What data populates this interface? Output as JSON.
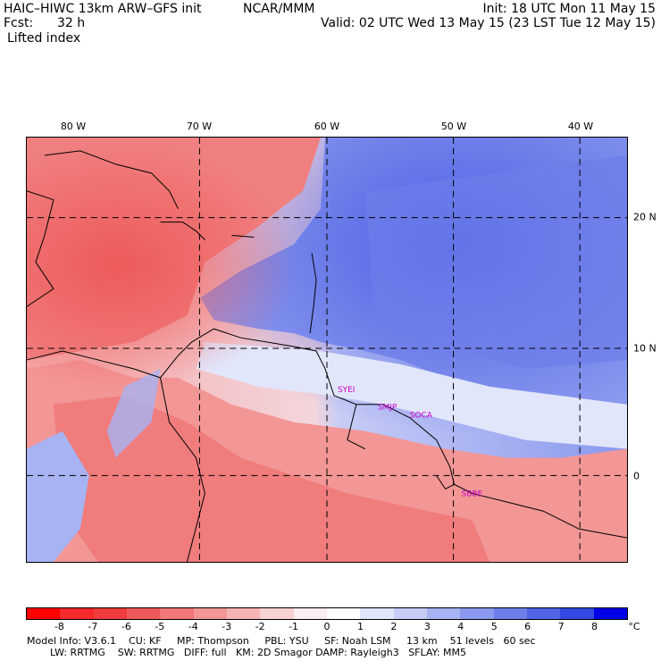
{
  "header": {
    "model": "HAIC–HIWC 13km ARW–GFS init",
    "org": "NCAR/MMM",
    "init": "Init: 18 UTC Mon 11 May 15",
    "fcst_label": "Fcst:",
    "fcst_value": "32 h",
    "valid": "Valid: 02 UTC Wed 13 May 15 (23 LST Tue 12 May 15)",
    "field": "Lifted index"
  },
  "map": {
    "lon_labels": [
      "80 W",
      "70 W",
      "60 W",
      "50 W",
      "40 W"
    ],
    "lat_labels": [
      "20 N",
      "10 N",
      "0"
    ],
    "station_labels": [
      "SYEI",
      "SMJP",
      "SOCA",
      "SBBE"
    ]
  },
  "colorbar": {
    "unit": "°C",
    "labels": [
      "-8",
      "-7",
      "-6",
      "-5",
      "-4",
      "-3",
      "-2",
      "-1",
      "0",
      "1",
      "2",
      "3",
      "4",
      "5",
      "6",
      "7",
      "8"
    ],
    "colors": [
      "#ff0000",
      "#f5282b",
      "#ee3c3c",
      "#ee5a5a",
      "#f07878",
      "#f39696",
      "#f5b4b4",
      "#f9d2d2",
      "#fcedee",
      "#ffffff",
      "#e2e6fb",
      "#c6cdf7",
      "#a8b3f3",
      "#8a98ee",
      "#6d7eea",
      "#5064e5",
      "#3248e1",
      "#0000e6"
    ]
  },
  "footer": {
    "line1": "Model Info: V3.6.1    CU: KF     MP: Thompson     PBL: YSU     SF: Noah LSM     13 km    51 levels   60 sec",
    "line2": "LW: RRTMG    SW: RRTMG   DIFF: full   KM: 2D Smagor DAMP: Rayleigh3   SFLAY: MM5"
  }
}
